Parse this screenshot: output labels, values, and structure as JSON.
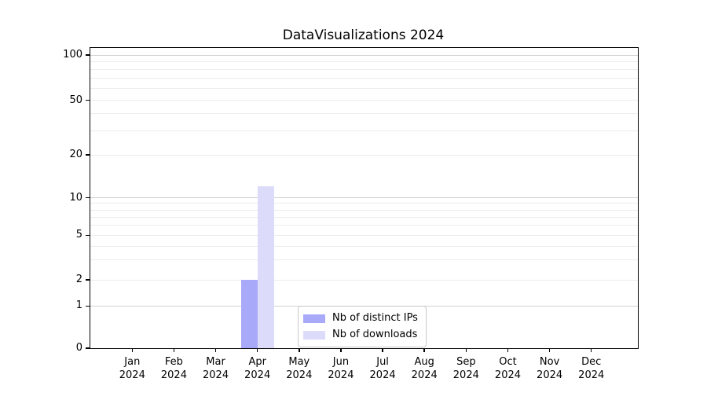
{
  "chart_data": {
    "type": "bar",
    "title": "DataVisualizations 2024",
    "categories": [
      "Jan 2024",
      "Feb 2024",
      "Mar 2024",
      "Apr 2024",
      "May 2024",
      "Jun 2024",
      "Jul 2024",
      "Aug 2024",
      "Sep 2024",
      "Oct 2024",
      "Nov 2024",
      "Dec 2024"
    ],
    "series": [
      {
        "name": "Nb of distinct IPs",
        "color": "#a9a9fa",
        "values": [
          0,
          0,
          0,
          2,
          0,
          0,
          0,
          0,
          0,
          0,
          0,
          0
        ]
      },
      {
        "name": "Nb of downloads",
        "color": "#dcdcfa",
        "values": [
          0,
          0,
          0,
          12,
          0,
          0,
          0,
          0,
          0,
          0,
          0,
          0
        ]
      }
    ],
    "y_ticks": [
      0,
      1,
      2,
      5,
      10,
      20,
      50,
      100
    ],
    "y_major_gridlines": [
      1,
      10,
      100
    ],
    "y_minor_gridlines": [
      3,
      4,
      6,
      7,
      8,
      9,
      30,
      40,
      60,
      70,
      80,
      90
    ],
    "ylim": [
      0,
      100
    ],
    "yscale": "log-like",
    "xlabel": "",
    "ylabel": "",
    "grid": true,
    "legend": {
      "position": "lower center",
      "entries": [
        "Nb of distinct IPs",
        "Nb of downloads"
      ]
    }
  },
  "colors": {
    "bar_distinct_ips": "#a9a9fa",
    "bar_downloads": "#dcdcfa",
    "grid_major": "#d2d2d2",
    "grid_minor": "#ececec",
    "axis": "#000000",
    "legend_border": "#c9c9c9",
    "background": "#ffffff"
  }
}
